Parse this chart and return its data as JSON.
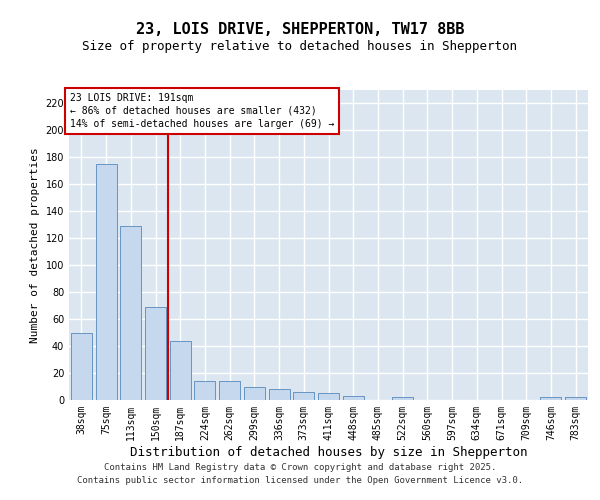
{
  "title": "23, LOIS DRIVE, SHEPPERTON, TW17 8BB",
  "subtitle": "Size of property relative to detached houses in Shepperton",
  "xlabel": "Distribution of detached houses by size in Shepperton",
  "ylabel": "Number of detached properties",
  "categories": [
    "38sqm",
    "75sqm",
    "113sqm",
    "150sqm",
    "187sqm",
    "224sqm",
    "262sqm",
    "299sqm",
    "336sqm",
    "373sqm",
    "411sqm",
    "448sqm",
    "485sqm",
    "522sqm",
    "560sqm",
    "597sqm",
    "634sqm",
    "671sqm",
    "709sqm",
    "746sqm",
    "783sqm"
  ],
  "values": [
    50,
    175,
    129,
    69,
    44,
    14,
    14,
    10,
    8,
    6,
    5,
    3,
    0,
    2,
    0,
    0,
    0,
    0,
    0,
    2,
    2
  ],
  "bar_color": "#c5d8ee",
  "bar_edgecolor": "#5588bb",
  "vline_x": 3.5,
  "vline_color": "#cc0000",
  "annotation_text": "23 LOIS DRIVE: 191sqm\n← 86% of detached houses are smaller (432)\n14% of semi-detached houses are larger (69) →",
  "annotation_box_edgecolor": "#cc0000",
  "ylim": [
    0,
    230
  ],
  "yticks": [
    0,
    20,
    40,
    60,
    80,
    100,
    120,
    140,
    160,
    180,
    200,
    220
  ],
  "plot_bg": "#dce6f0",
  "fig_bg": "#ffffff",
  "grid_color": "#ffffff",
  "title_fontsize": 11,
  "subtitle_fontsize": 9,
  "tick_fontsize": 7,
  "ylabel_fontsize": 8,
  "xlabel_fontsize": 9,
  "footer_line1": "Contains HM Land Registry data © Crown copyright and database right 2025.",
  "footer_line2": "Contains public sector information licensed under the Open Government Licence v3.0."
}
